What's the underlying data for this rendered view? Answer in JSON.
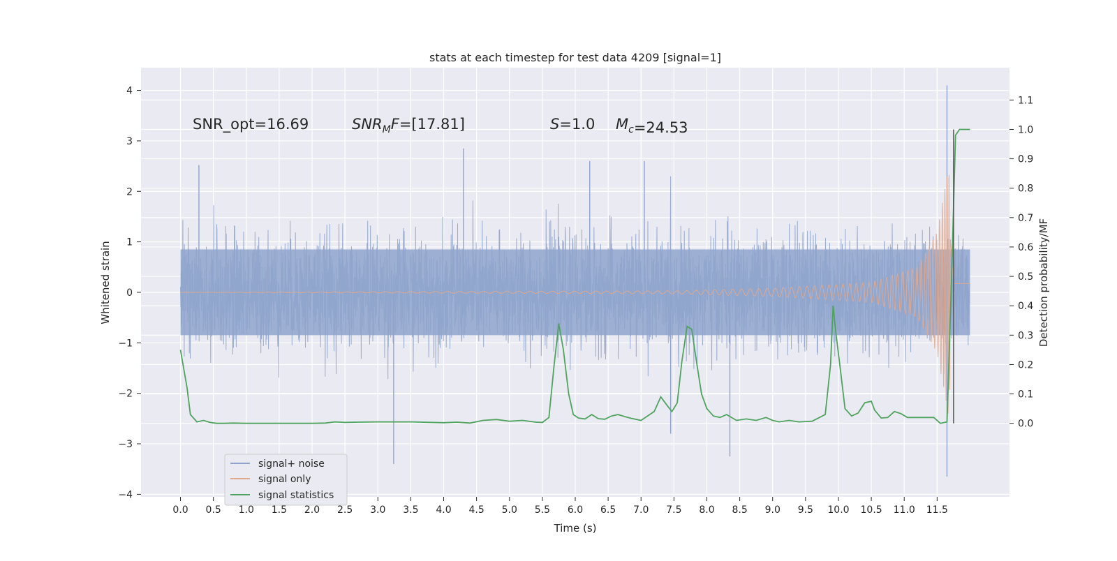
{
  "chart_data": {
    "type": "line",
    "title": "stats at each timestep for test data 4209 [signal=1]",
    "xlabel": "Time (s)",
    "ylabel": "Whitened strain",
    "ylabel_right": "Detection probability/MF",
    "xlim": [
      -0.6,
      12.6
    ],
    "ylim": [
      -4.05,
      4.45
    ],
    "ylim_right": [
      -0.25,
      1.21
    ],
    "grid": true,
    "x_ticks": [
      "0.0",
      "0.5",
      "1.0",
      "1.5",
      "2.0",
      "2.5",
      "3.0",
      "3.5",
      "4.0",
      "4.5",
      "5.0",
      "5.5",
      "6.0",
      "6.5",
      "7.0",
      "7.5",
      "8.0",
      "8.5",
      "9.0",
      "9.5",
      "10.0",
      "10.5",
      "11.0",
      "11.5"
    ],
    "y_ticks": [
      "−4",
      "−3",
      "−2",
      "−1",
      "0",
      "1",
      "2",
      "3",
      "4"
    ],
    "y_ticks_right": [
      "0.0",
      "0.1",
      "0.2",
      "0.3",
      "0.4",
      "0.5",
      "0.6",
      "0.7",
      "0.8",
      "0.9",
      "1.0",
      "1.1"
    ],
    "annotations": [
      {
        "id": "snr_opt",
        "text": "SNR_opt=16.69"
      },
      {
        "id": "snr_mf",
        "text": "SNR_MF=[17.81]"
      },
      {
        "id": "s_val",
        "text": "S=1.0"
      },
      {
        "id": "mc",
        "text": "M_c=24.53"
      }
    ],
    "legend": {
      "placement": "lower-left",
      "entries": [
        {
          "label": "signal+ noise",
          "color": "#8fa4cc"
        },
        {
          "label": "signal only",
          "color": "#e3a98c"
        },
        {
          "label": "signal statistics",
          "color": "#4fa35e"
        }
      ]
    },
    "series": [
      {
        "name": "signal+ noise",
        "color": "#8fa4cc",
        "style": "dense noise fill, approx band -1.3 to 1.3 with spikes",
        "x_range": [
          0.0,
          12.0
        ],
        "noise_spikes": [
          {
            "x": 0.28,
            "y": 2.52
          },
          {
            "x": 3.24,
            "y": -3.4
          },
          {
            "x": 4.3,
            "y": 2.85
          },
          {
            "x": 6.22,
            "y": 2.6
          },
          {
            "x": 7.05,
            "y": 2.6
          },
          {
            "x": 8.35,
            "y": -3.25
          },
          {
            "x": 11.65,
            "y": 4.1
          },
          {
            "x": 11.65,
            "y": -3.65
          },
          {
            "x": 7.45,
            "y": -2.8
          }
        ]
      },
      {
        "name": "signal only",
        "color": "#e3a98c",
        "style": "chirp: near zero, amplitude grows toward merger",
        "x_range": [
          0.0,
          12.0
        ],
        "amplitude_points": [
          [
            0.0,
            0.0
          ],
          [
            7.5,
            0.03
          ],
          [
            9.0,
            0.08
          ],
          [
            10.5,
            0.2
          ],
          [
            11.2,
            0.5
          ],
          [
            11.5,
            1.2
          ],
          [
            11.68,
            2.5
          ],
          [
            11.75,
            0.3
          ]
        ]
      },
      {
        "name": "signal statistics",
        "color": "#4fa35e",
        "axis": "right",
        "x": [
          0.0,
          0.1,
          0.15,
          0.25,
          0.35,
          0.45,
          0.55,
          0.65,
          0.8,
          1.0,
          1.5,
          2.0,
          2.2,
          2.35,
          2.5,
          2.7,
          3.0,
          3.5,
          4.0,
          4.2,
          4.4,
          4.6,
          4.8,
          5.0,
          5.2,
          5.4,
          5.5,
          5.6,
          5.68,
          5.75,
          5.82,
          5.9,
          5.97,
          6.05,
          6.15,
          6.25,
          6.35,
          6.45,
          6.55,
          6.65,
          6.75,
          6.85,
          7.0,
          7.2,
          7.3,
          7.4,
          7.47,
          7.55,
          7.62,
          7.7,
          7.77,
          7.85,
          7.92,
          8.0,
          8.1,
          8.2,
          8.3,
          8.45,
          8.6,
          8.75,
          8.9,
          9.0,
          9.1,
          9.25,
          9.4,
          9.6,
          9.8,
          9.88,
          9.92,
          9.96,
          10.02,
          10.1,
          10.2,
          10.3,
          10.4,
          10.5,
          10.55,
          10.65,
          10.75,
          10.85,
          10.95,
          11.05,
          11.15,
          11.3,
          11.45,
          11.55,
          11.65,
          11.72,
          11.78,
          11.84,
          11.9,
          12.0
        ],
        "y": [
          0.25,
          0.12,
          0.03,
          0.005,
          0.01,
          0.003,
          0.0,
          0.0,
          0.001,
          0.0,
          0.0,
          0.0,
          0.001,
          0.005,
          0.003,
          0.004,
          0.005,
          0.005,
          0.002,
          0.004,
          0.001,
          0.01,
          0.013,
          0.007,
          0.01,
          0.004,
          0.003,
          0.02,
          0.2,
          0.34,
          0.25,
          0.1,
          0.03,
          0.018,
          0.015,
          0.03,
          0.016,
          0.014,
          0.025,
          0.03,
          0.023,
          0.017,
          0.01,
          0.04,
          0.09,
          0.06,
          0.04,
          0.07,
          0.21,
          0.33,
          0.32,
          0.2,
          0.1,
          0.05,
          0.025,
          0.02,
          0.03,
          0.01,
          0.015,
          0.01,
          0.02,
          0.01,
          0.005,
          0.01,
          0.005,
          0.007,
          0.03,
          0.2,
          0.4,
          0.31,
          0.2,
          0.05,
          0.025,
          0.035,
          0.07,
          0.075,
          0.045,
          0.018,
          0.02,
          0.04,
          0.033,
          0.02,
          0.02,
          0.02,
          0.02,
          0.0,
          0.005,
          0.5,
          0.98,
          1.0,
          1.0,
          1.0
        ]
      }
    ]
  }
}
